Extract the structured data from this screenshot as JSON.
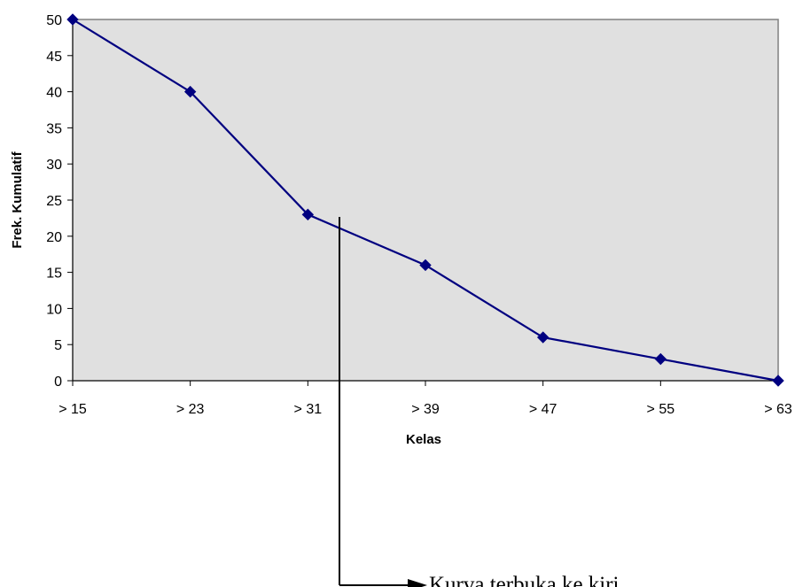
{
  "chart_data": {
    "type": "line",
    "title": "",
    "xlabel": "Kelas",
    "ylabel": "Frek. Kumulatif",
    "categories": [
      "> 15",
      "> 23",
      "> 31",
      "> 39",
      "> 47",
      "> 55",
      "> 63"
    ],
    "series": [
      {
        "values": [
          50,
          40,
          23,
          16,
          6,
          3,
          0
        ]
      }
    ],
    "ylim": [
      0,
      50
    ],
    "yticks": [
      0,
      5,
      10,
      15,
      20,
      25,
      30,
      35,
      40,
      45,
      50
    ],
    "grid": false,
    "legend": "none",
    "plot_background": "#e0e0e0",
    "series_color": "#000080",
    "marker": "diamond",
    "annotation": {
      "text": "Kurva terbuka ke kiri"
    }
  }
}
